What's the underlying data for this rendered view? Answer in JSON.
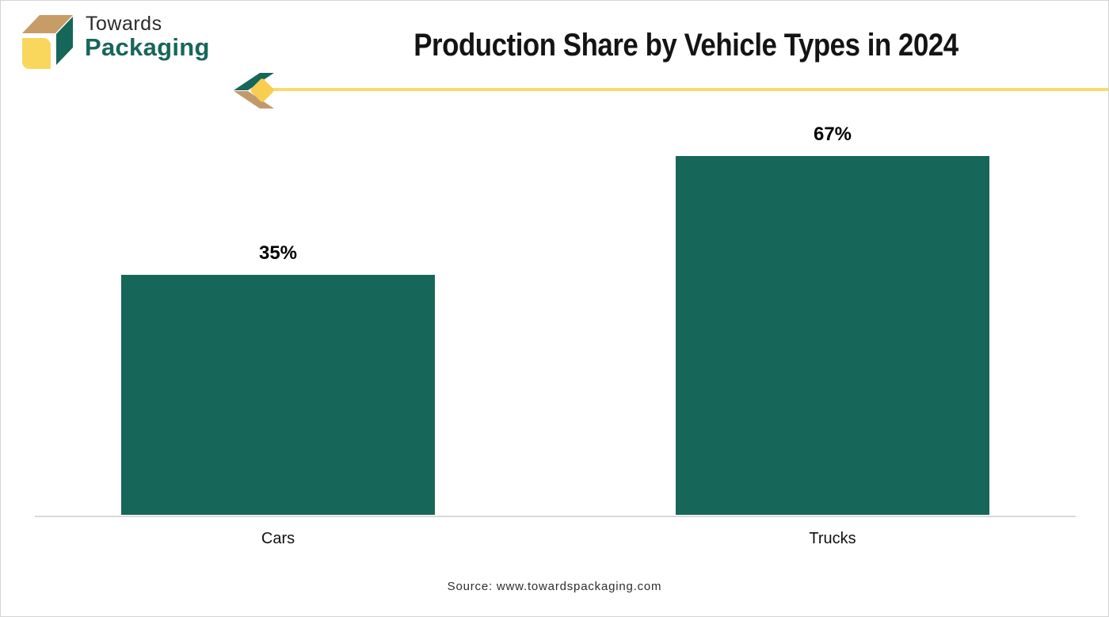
{
  "brand": {
    "line1": "Towards",
    "line2": "Packaging"
  },
  "title": "Production Share by Vehicle Types in 2024",
  "chart_data": {
    "type": "bar",
    "title": "Production Share by Vehicle Types in 2024",
    "categories": [
      "Cars",
      "Trucks"
    ],
    "values": [
      35,
      67
    ],
    "value_labels": [
      "35%",
      "67%"
    ],
    "unit": "%",
    "bar_color": "#17665a",
    "axis_line_color": "#d8d8d8",
    "grid": false,
    "legend": false,
    "value_axis_shown": false
  },
  "footer": {
    "source": "Source: www.towardspackaging.com"
  },
  "theme": {
    "brand_green": "#17665a",
    "brand_tan": "#c79c66",
    "brand_yellow": "#f9d65c",
    "accent_diamond_yellow": "#f7ce4f",
    "accent_line_yellow": "#f8db6e"
  }
}
